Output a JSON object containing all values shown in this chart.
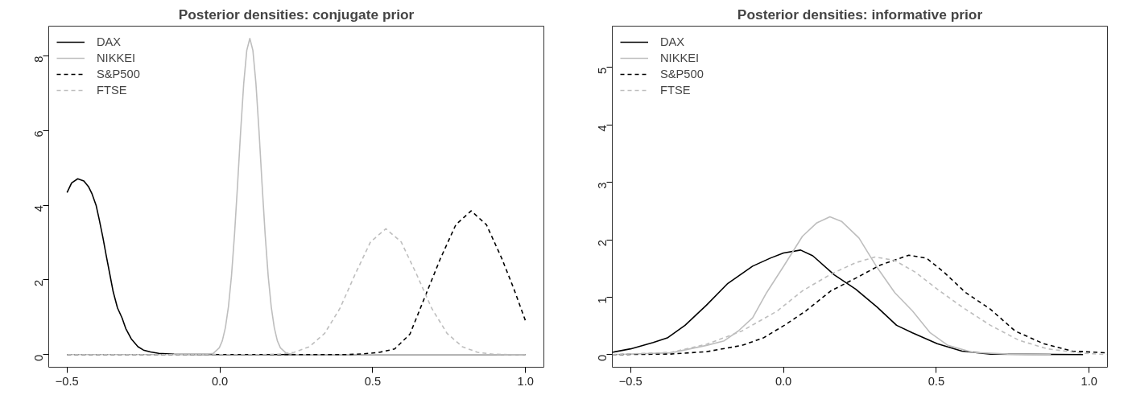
{
  "chart_data": [
    {
      "type": "line",
      "title": "Posterior densities: conjugate prior",
      "xlim": [
        -0.56,
        1.06
      ],
      "ylim": [
        -0.34,
        8.8
      ],
      "xticks": [
        {
          "value": -0.5,
          "label": "−0.5"
        },
        {
          "value": 0,
          "label": "0.0"
        },
        {
          "value": 0.5,
          "label": "0.5"
        },
        {
          "value": 1,
          "label": "1.0"
        }
      ],
      "yticks": [
        0,
        2,
        4,
        6,
        8
      ],
      "grid": false,
      "legend": "top left",
      "series": [
        {
          "name": "DAX",
          "color": "#000000",
          "line_style": "solid",
          "x": [
            -0.5,
            -0.485,
            -0.465,
            -0.445,
            -0.43,
            -0.419,
            -0.405,
            -0.395,
            -0.383,
            -0.372,
            -0.36,
            -0.349,
            -0.335,
            -0.32,
            -0.308,
            -0.29,
            -0.268,
            -0.25,
            -0.227,
            -0.2,
            -0.15,
            0.0,
            0.5,
            1.0
          ],
          "values": [
            4.34,
            4.6,
            4.71,
            4.65,
            4.5,
            4.32,
            4.0,
            3.63,
            3.15,
            2.66,
            2.15,
            1.68,
            1.25,
            0.98,
            0.7,
            0.42,
            0.21,
            0.12,
            0.07,
            0.03,
            0.01,
            0,
            0,
            0
          ]
        },
        {
          "name": "NIKKEI",
          "color": "#bebebe",
          "line_style": "solid",
          "x": [
            -0.5,
            -0.052,
            -0.022,
            -0.002,
            0.008,
            0.018,
            0.028,
            0.038,
            0.048,
            0.058,
            0.068,
            0.078,
            0.088,
            0.098,
            0.108,
            0.118,
            0.128,
            0.138,
            0.148,
            0.158,
            0.168,
            0.178,
            0.188,
            0.198,
            0.218,
            0.25,
            1.0
          ],
          "values": [
            0,
            0,
            0.03,
            0.18,
            0.37,
            0.72,
            1.28,
            2.11,
            3.23,
            4.57,
            5.99,
            7.26,
            8.15,
            8.47,
            8.15,
            7.26,
            5.99,
            4.57,
            3.23,
            2.11,
            1.28,
            0.72,
            0.37,
            0.18,
            0.03,
            0,
            0
          ]
        },
        {
          "name": "S&P500",
          "color": "#000000",
          "line_style": "dashed",
          "x": [
            -0.5,
            0.42,
            0.472,
            0.522,
            0.572,
            0.622,
            0.672,
            0.722,
            0.772,
            0.822,
            0.872,
            0.922,
            0.96,
            1.0
          ],
          "values": [
            0,
            0,
            0.02,
            0.06,
            0.15,
            0.55,
            1.57,
            2.58,
            3.48,
            3.85,
            3.48,
            2.58,
            1.8,
            0.9
          ]
        },
        {
          "name": "FTSE",
          "color": "#bebebe",
          "line_style": "dashed",
          "x": [
            -0.5,
            0.143,
            0.193,
            0.243,
            0.293,
            0.343,
            0.393,
            0.443,
            0.493,
            0.543,
            0.593,
            0.643,
            0.693,
            0.743,
            0.793,
            0.843,
            0.893,
            0.943,
            1.0
          ],
          "values": [
            0,
            0,
            0.01,
            0.06,
            0.21,
            0.57,
            1.24,
            2.16,
            3.02,
            3.37,
            3.02,
            2.16,
            1.24,
            0.57,
            0.21,
            0.06,
            0.01,
            0,
            0
          ]
        }
      ]
    },
    {
      "type": "line",
      "title": "Posterior densities: informative prior",
      "xlim": [
        -0.56,
        1.06
      ],
      "ylim": [
        -0.22,
        5.72
      ],
      "xticks": [
        {
          "value": -0.5,
          "label": "−0.5"
        },
        {
          "value": 0,
          "label": "0.0"
        },
        {
          "value": 0.5,
          "label": "0.5"
        },
        {
          "value": 1,
          "label": "1.0"
        }
      ],
      "yticks": [
        0,
        1,
        2,
        3,
        4,
        5
      ],
      "grid": false,
      "legend": "top left",
      "series": [
        {
          "name": "DAX",
          "color": "#000000",
          "line_style": "solid",
          "x": [
            -0.56,
            -0.5,
            -0.426,
            -0.38,
            -0.322,
            -0.252,
            -0.182,
            -0.101,
            -0.043,
            0.0,
            0.056,
            0.096,
            0.166,
            0.236,
            0.306,
            0.37,
            0.422,
            0.503,
            0.584,
            0.677,
            0.98
          ],
          "values": [
            0.04,
            0.1,
            0.21,
            0.29,
            0.51,
            0.86,
            1.24,
            1.54,
            1.68,
            1.77,
            1.82,
            1.72,
            1.39,
            1.14,
            0.83,
            0.51,
            0.38,
            0.19,
            0.06,
            0.01,
            0
          ]
        },
        {
          "name": "NIKKEI",
          "color": "#bebebe",
          "line_style": "solid",
          "x": [
            -0.56,
            -0.368,
            -0.252,
            -0.194,
            -0.148,
            -0.101,
            -0.055,
            0.003,
            0.062,
            0.108,
            0.152,
            0.19,
            0.247,
            0.306,
            0.364,
            0.422,
            0.48,
            0.538,
            0.619,
            0.735,
            0.875
          ],
          "values": [
            0,
            0.03,
            0.16,
            0.24,
            0.41,
            0.64,
            1.08,
            1.56,
            2.06,
            2.29,
            2.4,
            2.32,
            2.03,
            1.52,
            1.08,
            0.76,
            0.38,
            0.16,
            0.04,
            0.01,
            0
          ]
        },
        {
          "name": "S&P500",
          "color": "#000000",
          "line_style": "dashed",
          "x": [
            -0.56,
            -0.368,
            -0.252,
            -0.136,
            -0.066,
            0.003,
            0.073,
            0.155,
            0.236,
            0.317,
            0.41,
            0.468,
            0.526,
            0.596,
            0.677,
            0.758,
            0.851,
            0.945,
            1.058
          ],
          "values": [
            0,
            0.01,
            0.05,
            0.16,
            0.29,
            0.51,
            0.76,
            1.11,
            1.33,
            1.56,
            1.73,
            1.68,
            1.43,
            1.08,
            0.79,
            0.41,
            0.19,
            0.06,
            0.03
          ]
        },
        {
          "name": "FTSE",
          "color": "#bebebe",
          "line_style": "dashed",
          "x": [
            -0.56,
            -0.368,
            -0.252,
            -0.136,
            -0.02,
            0.062,
            0.155,
            0.236,
            0.3,
            0.364,
            0.433,
            0.503,
            0.584,
            0.677,
            0.77,
            0.863,
            0.968,
            1.058
          ],
          "values": [
            0,
            0.04,
            0.18,
            0.41,
            0.76,
            1.11,
            1.4,
            1.6,
            1.7,
            1.64,
            1.43,
            1.14,
            0.83,
            0.51,
            0.25,
            0.1,
            0.03,
            0
          ]
        }
      ]
    }
  ]
}
